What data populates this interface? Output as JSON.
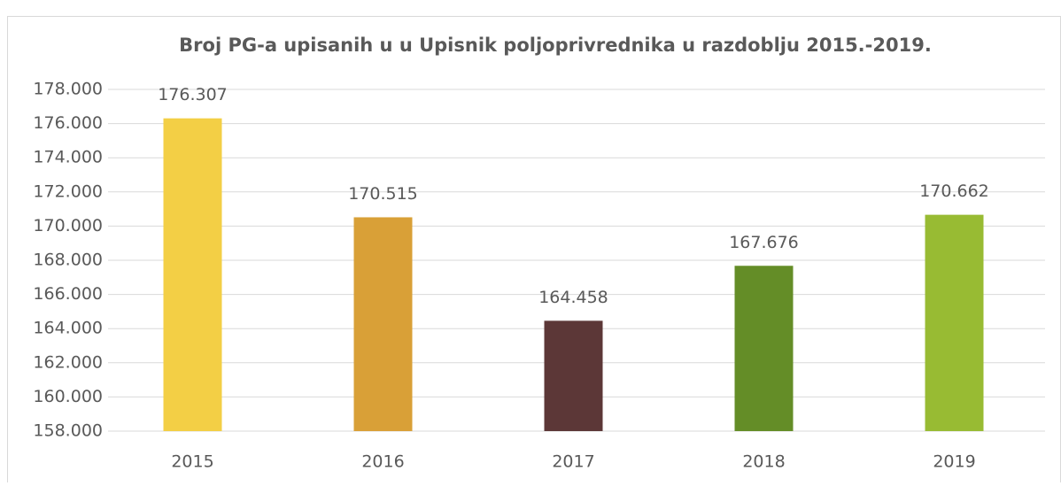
{
  "chart_data": {
    "type": "bar",
    "title": "Broj PG-a upisanih u u Upisnik poljoprivrednika u razdoblju 2015.-2019.",
    "categories": [
      "2015",
      "2016",
      "2017",
      "2018",
      "2019"
    ],
    "values": [
      176307,
      170515,
      164458,
      167676,
      170662
    ],
    "value_labels": [
      "176.307",
      "170.515",
      "164.458",
      "167.676",
      "170.662"
    ],
    "colors": [
      "#f3cf45",
      "#d9a037",
      "#5c3737",
      "#648d27",
      "#98bb33"
    ],
    "ylim": [
      158000,
      178000
    ],
    "yticks": [
      {
        "value": 158000,
        "label": "158.000"
      },
      {
        "value": 160000,
        "label": "160.000"
      },
      {
        "value": 162000,
        "label": "162.000"
      },
      {
        "value": 164000,
        "label": "164.000"
      },
      {
        "value": 166000,
        "label": "166.000"
      },
      {
        "value": 168000,
        "label": "168.000"
      },
      {
        "value": 170000,
        "label": "170.000"
      },
      {
        "value": 172000,
        "label": "172.000"
      },
      {
        "value": 174000,
        "label": "174.000"
      },
      {
        "value": 176000,
        "label": "176.000"
      },
      {
        "value": 178000,
        "label": "178.000"
      }
    ],
    "grid": true
  }
}
